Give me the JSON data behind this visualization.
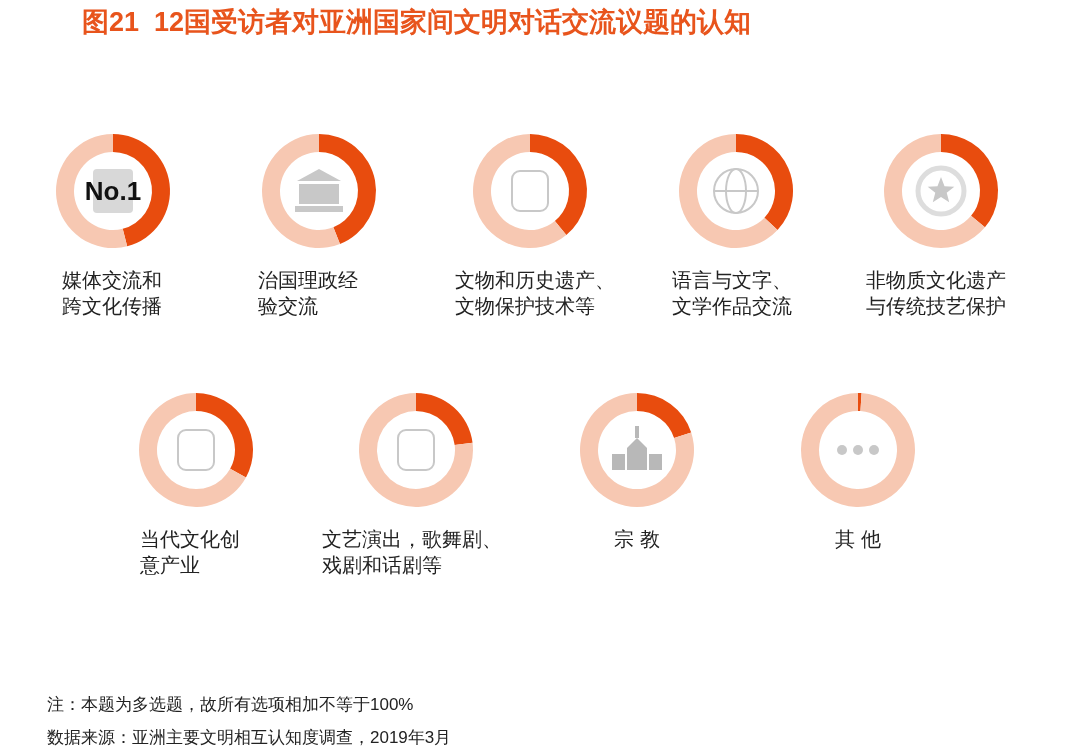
{
  "chart_data": [
    {
      "type": "other",
      "title": "图21  12国受访者对亚洲国家间文明对话交流议题的认知",
      "annotations": [
        "注：本题为多选题，故所有选项相加不等于100%",
        "数据来源：亚洲主要文明相互认知度调查，2019年3月"
      ]
    },
    {
      "type": "donut",
      "title": "媒体交流和跨文化传播",
      "categories": [
        null,
        null
      ],
      "values": [
        46,
        54
      ],
      "colors": [
        "#e84c0e",
        "#f7c8b2"
      ],
      "annotations": [
        "No.1"
      ]
    },
    {
      "type": "donut",
      "title": "治国理政经验交流",
      "categories": [
        null,
        null
      ],
      "values": [
        44,
        56
      ],
      "colors": [
        "#e84c0e",
        "#f7c8b2"
      ]
    },
    {
      "type": "donut",
      "title": "文物和历史遗产、文物保护技术等",
      "categories": [
        null,
        null
      ],
      "values": [
        39,
        61
      ],
      "colors": [
        "#e84c0e",
        "#f7c8b2"
      ]
    },
    {
      "type": "donut",
      "title": "语言与文字、文学作品交流",
      "categories": [
        null,
        null
      ],
      "values": [
        37,
        63
      ],
      "colors": [
        "#e84c0e",
        "#f7c8b2"
      ]
    },
    {
      "type": "donut",
      "title": "非物质文化遗产与传统技艺保护",
      "categories": [
        null,
        null
      ],
      "values": [
        36,
        64
      ],
      "colors": [
        "#e84c0e",
        "#f7c8b2"
      ]
    },
    {
      "type": "donut",
      "title": "当代文化创意产业",
      "categories": [
        null,
        null
      ],
      "values": [
        33,
        67
      ],
      "colors": [
        "#e84c0e",
        "#f7c8b2"
      ]
    },
    {
      "type": "donut",
      "title": "文艺演出，歌舞剧、戏剧和话剧等",
      "categories": [
        null,
        null
      ],
      "values": [
        23,
        77
      ],
      "colors": [
        "#e84c0e",
        "#f7c8b2"
      ]
    },
    {
      "type": "donut",
      "title": "宗 教",
      "categories": [
        null,
        null
      ],
      "values": [
        20,
        80
      ],
      "colors": [
        "#e84c0e",
        "#f7c8b2"
      ]
    },
    {
      "type": "donut",
      "title": "其 他",
      "categories": [
        null,
        null
      ],
      "values": [
        1,
        99
      ],
      "colors": [
        "#e84c0e",
        "#f7c8b2"
      ]
    }
  ]
}
